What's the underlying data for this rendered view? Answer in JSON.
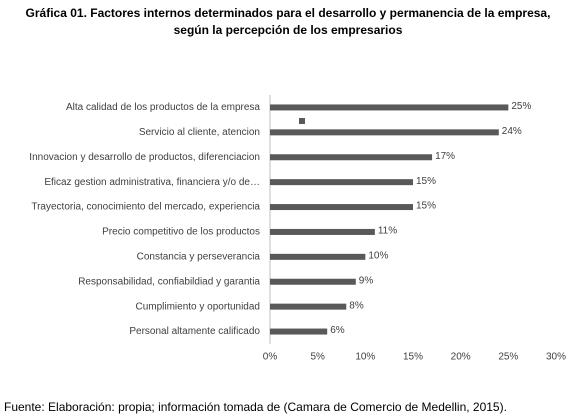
{
  "chart_data": {
    "type": "barh",
    "title": "Gráfica 01. Factores internos determinados para el desarrollo y permanencia de la empresa,",
    "subtitle": "según la percepción de los empresarios",
    "footer": "Fuente: Elaboración: propia; información tomada de (Camara de Comercio de Medellin, 2015).",
    "categories": [
      "Alta calidad de los productos de la empresa",
      "Servicio al cliente, atencion",
      "Innovacion y desarrollo de productos, diferenciacion",
      "Eficaz gestion administrativa, financiera y/o de…",
      "Trayectoria, conocimiento del mercado, experiencia",
      "Precio competitivo de los productos",
      "Constancia y perseverancia",
      "Responsabilidad, confiabildiad y garantia",
      "Cumplimiento y oportunidad",
      "Personal altamente calificado"
    ],
    "values": [
      25,
      24,
      17,
      15,
      15,
      11,
      10,
      9,
      8,
      6
    ],
    "value_labels": [
      "25%",
      "24%",
      "17%",
      "15%",
      "15%",
      "11%",
      "10%",
      "9%",
      "8%",
      "6%"
    ],
    "color": "#595959",
    "xlim": [
      0,
      30
    ],
    "xticks": [
      {
        "value": 0,
        "label": "0%"
      },
      {
        "value": 5,
        "label": "5%"
      },
      {
        "value": 10,
        "label": "10%"
      },
      {
        "value": 15,
        "label": "15%"
      },
      {
        "value": 20,
        "label": "20%"
      },
      {
        "value": 25,
        "label": "25%"
      },
      {
        "value": 30,
        "label": "30%"
      }
    ],
    "grid": false
  }
}
